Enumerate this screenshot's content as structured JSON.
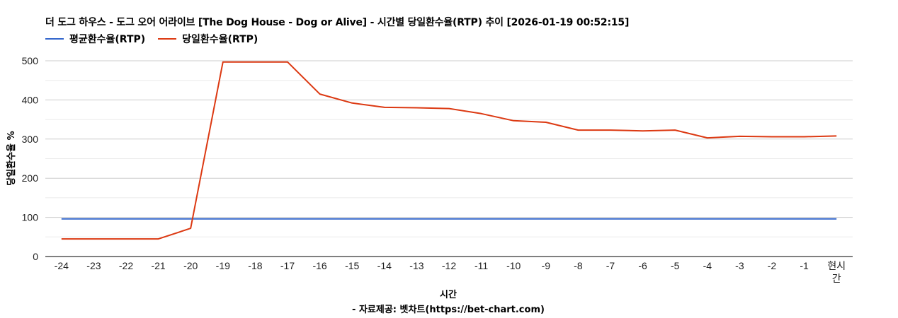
{
  "header": {
    "title": "더 도그 하우스 - 도그 오어 어라이브 [The Dog House - Dog or Alive] - 시간별 당일환수율(RTP) 추이 [2026-01-19 00:52:15]"
  },
  "legend": [
    {
      "label": "평균환수율(RTP)",
      "color": "#3366cc"
    },
    {
      "label": "당일환수율(RTP)",
      "color": "#dc3912"
    }
  ],
  "axes": {
    "ylabel": "당일환수율 %",
    "xlabel": "시간",
    "source": "- 자료제공: 벳차트(https://bet-chart.com)"
  },
  "chart_data": {
    "type": "line",
    "title": "더 도그 하우스 - 도그 오어 어라이브 [The Dog House - Dog or Alive] - 시간별 당일환수율(RTP) 추이 [2026-01-19 00:52:15]",
    "xlabel": "시간",
    "ylabel": "당일환수율 %",
    "categories": [
      "-24",
      "-23",
      "-22",
      "-21",
      "-20",
      "-19",
      "-18",
      "-17",
      "-16",
      "-15",
      "-14",
      "-13",
      "-12",
      "-11",
      "-10",
      "-9",
      "-8",
      "-7",
      "-6",
      "-5",
      "-4",
      "-3",
      "-2",
      "-1",
      "현시간"
    ],
    "series": [
      {
        "name": "평균환수율(RTP)",
        "color": "#3366cc",
        "values": [
          96,
          96,
          96,
          96,
          96,
          96,
          96,
          96,
          96,
          96,
          96,
          96,
          96,
          96,
          96,
          96,
          96,
          96,
          96,
          96,
          96,
          96,
          96,
          96,
          96
        ]
      },
      {
        "name": "당일환수율(RTP)",
        "color": "#dc3912",
        "values": [
          45,
          45,
          45,
          45,
          72,
          497,
          497,
          497,
          415,
          392,
          381,
          380,
          378,
          365,
          347,
          343,
          323,
          323,
          321,
          323,
          303,
          307,
          306,
          306,
          308
        ]
      }
    ],
    "yticks": [
      0,
      100,
      200,
      300,
      400,
      500
    ],
    "ylim": [
      0,
      500
    ],
    "grid": true,
    "legend_position": "top-left",
    "annotation": "- 자료제공: 벳차트(https://bet-chart.com)"
  }
}
